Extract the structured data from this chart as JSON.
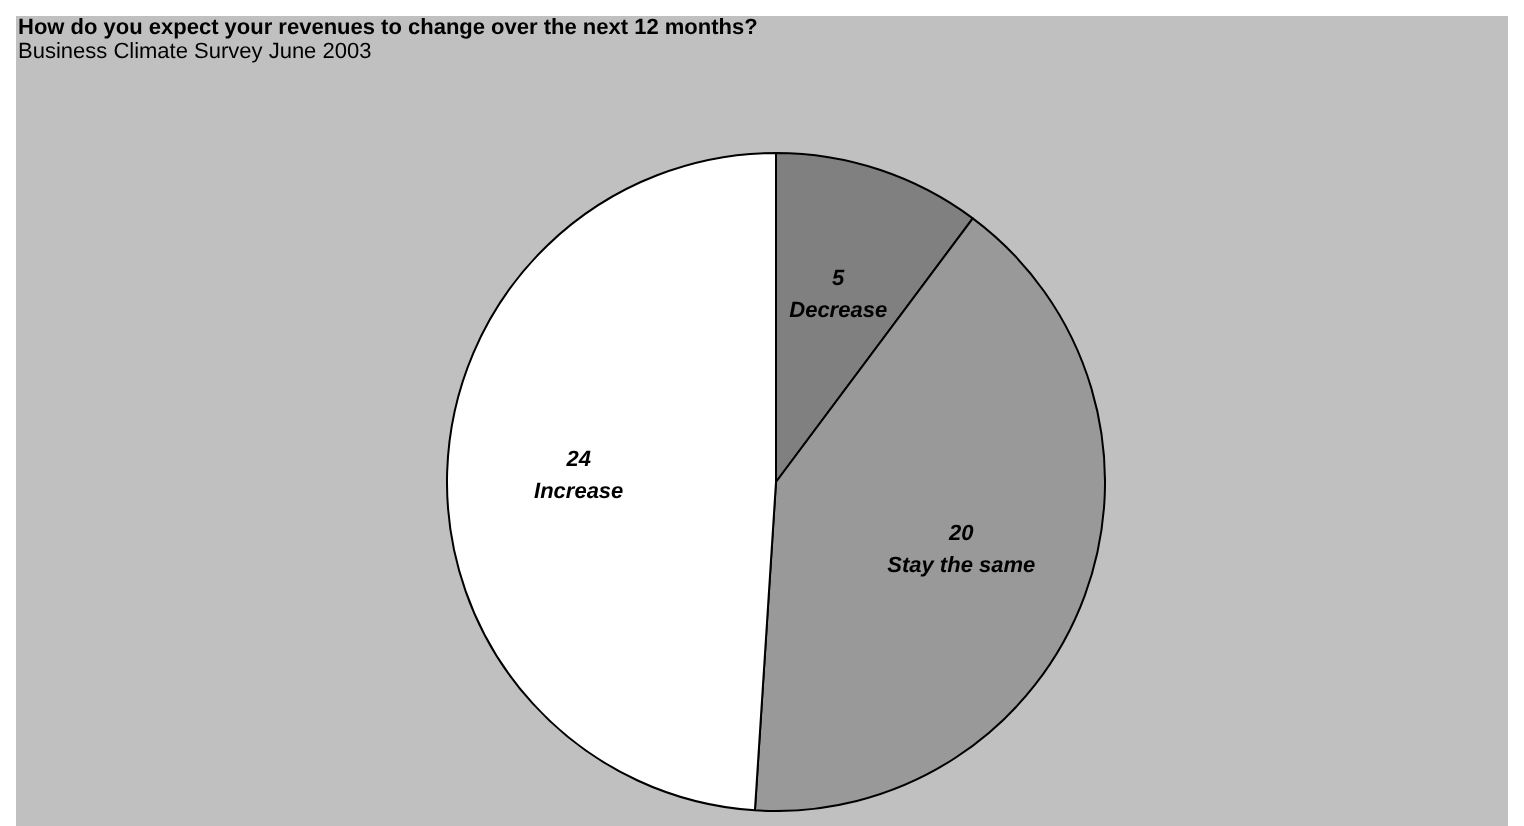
{
  "chart_data": {
    "type": "pie",
    "title": "How do you expect your revenues to change over the next 12 months?",
    "subtitle": "Business Climate Survey June 2003",
    "categories": [
      "Decrease",
      "Stay the same",
      "Increase"
    ],
    "values": [
      5,
      20,
      24
    ],
    "colors": [
      "#808080",
      "#999999",
      "#ffffff"
    ],
    "data_labels": true
  }
}
